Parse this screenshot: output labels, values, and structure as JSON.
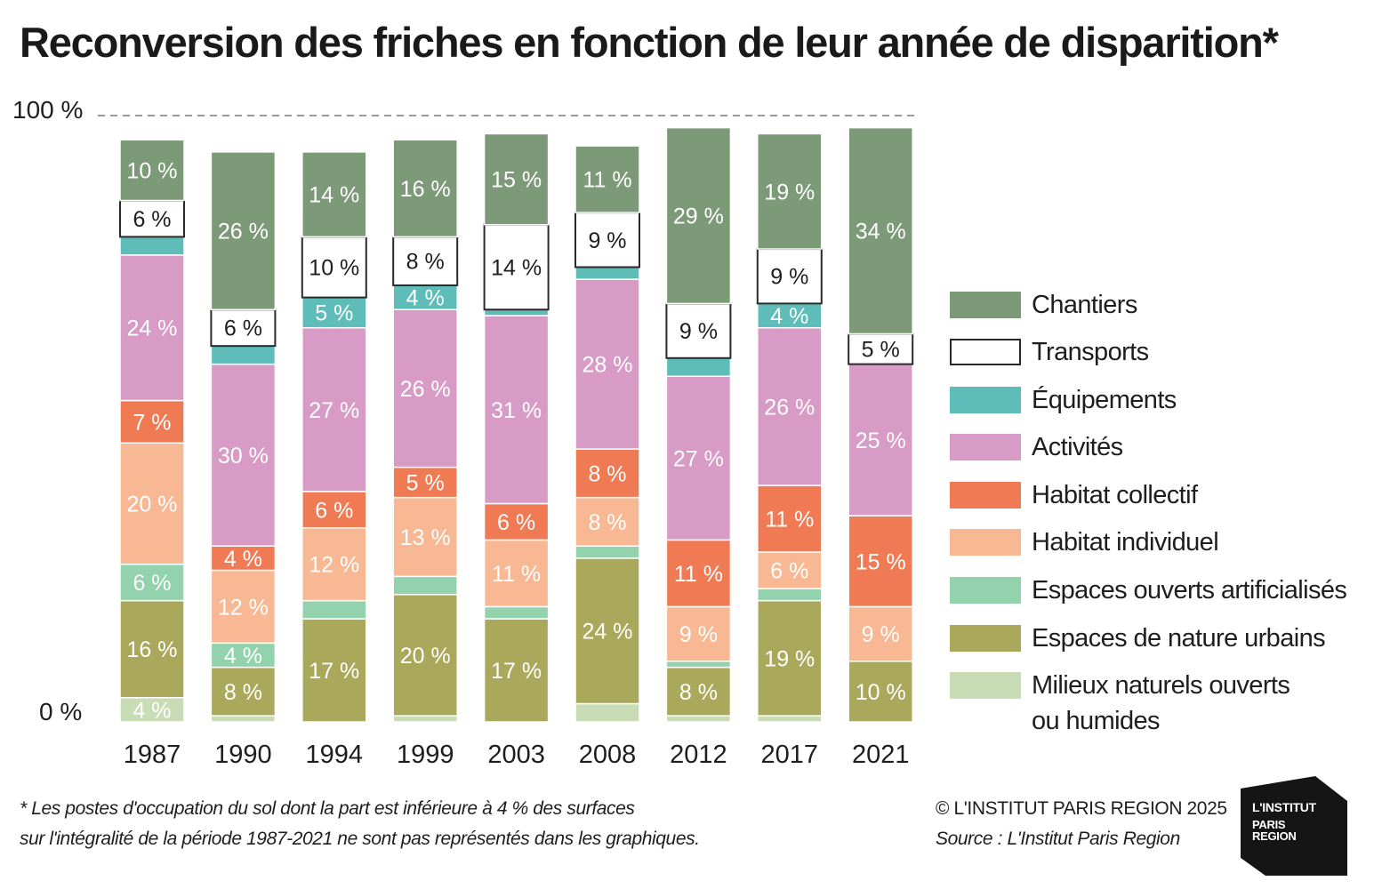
{
  "title": "Reconversion des friches en fonction de leur année de disparition*",
  "chart_data": {
    "type": "bar",
    "stacked": true,
    "categories": [
      "1987",
      "1990",
      "1994",
      "1999",
      "2003",
      "2008",
      "2012",
      "2017",
      "2021"
    ],
    "y_ticks": [
      "100 %",
      "0 %"
    ],
    "ylim": [
      0,
      100
    ],
    "series": [
      {
        "name": "Milieux naturels ouverts ou humides",
        "color": "#c8dcb5",
        "values": [
          4,
          1,
          0,
          1,
          0,
          3,
          1,
          1,
          0
        ],
        "labels": [
          "4 %",
          "",
          "",
          "",
          "",
          "",
          "",
          "",
          ""
        ]
      },
      {
        "name": "Espaces de nature urbains",
        "color": "#aaa85a",
        "values": [
          16,
          8,
          17,
          20,
          17,
          24,
          8,
          19,
          10
        ],
        "labels": [
          "16 %",
          "8 %",
          "17 %",
          "20 %",
          "17 %",
          "24 %",
          "8 %",
          "19 %",
          "10 %"
        ]
      },
      {
        "name": "Espaces ouverts artificialisés",
        "color": "#92d2ad",
        "values": [
          6,
          4,
          3,
          3,
          2,
          2,
          1,
          2,
          0
        ],
        "labels": [
          "6 %",
          "4 %",
          "",
          "",
          "",
          "",
          "",
          "",
          ""
        ]
      },
      {
        "name": "Habitat individuel",
        "color": "#f7b893",
        "values": [
          20,
          12,
          12,
          13,
          11,
          8,
          9,
          6,
          9
        ],
        "labels": [
          "20 %",
          "12 %",
          "12 %",
          "13 %",
          "11 %",
          "8 %",
          "9 %",
          "6 %",
          "9 %"
        ]
      },
      {
        "name": "Habitat collectif",
        "color": "#ef7a54",
        "values": [
          7,
          4,
          6,
          5,
          6,
          8,
          11,
          11,
          15
        ],
        "labels": [
          "7 %",
          "4 %",
          "6 %",
          "5 %",
          "6 %",
          "8 %",
          "11 %",
          "11 %",
          "15 %"
        ]
      },
      {
        "name": "Activités",
        "color": "#d79bc6",
        "values": [
          24,
          30,
          27,
          26,
          31,
          28,
          27,
          26,
          25
        ],
        "labels": [
          "24 %",
          "30 %",
          "27 %",
          "26 %",
          "31 %",
          "28 %",
          "27 %",
          "26 %",
          "25 %"
        ]
      },
      {
        "name": "Équipements",
        "color": "#5ebcb9",
        "values": [
          3,
          3,
          5,
          4,
          1,
          2,
          3,
          4,
          0
        ],
        "labels": [
          "",
          "",
          "5 %",
          "4 %",
          "",
          "",
          "",
          "4 %",
          ""
        ]
      },
      {
        "name": "Transports",
        "color": "#ffffff",
        "values": [
          6,
          6,
          10,
          8,
          14,
          9,
          9,
          9,
          5
        ],
        "labels": [
          "6 %",
          "6 %",
          "10 %",
          "8 %",
          "14 %",
          "9 %",
          "9 %",
          "9 %",
          "5 %"
        ]
      },
      {
        "name": "Chantiers",
        "color": "#7d9a78",
        "values": [
          10,
          26,
          14,
          16,
          15,
          11,
          29,
          19,
          34
        ],
        "labels": [
          "10 %",
          "26 %",
          "14 %",
          "16 %",
          "15 %",
          "11 %",
          "29 %",
          "19 %",
          "34 %"
        ]
      }
    ],
    "legend_position": "right",
    "grid": false
  },
  "legend": [
    {
      "label": "Chantiers",
      "color": "#7d9a78"
    },
    {
      "label": "Transports",
      "color": "#ffffff"
    },
    {
      "label": "Équipements",
      "color": "#5ebcb9"
    },
    {
      "label": "Activités",
      "color": "#d79bc6"
    },
    {
      "label": "Habitat collectif",
      "color": "#ef7a54"
    },
    {
      "label": "Habitat individuel",
      "color": "#f7b893"
    },
    {
      "label": "Espaces ouverts artificialisés",
      "color": "#92d2ad"
    },
    {
      "label": "Espaces de nature urbains",
      "color": "#aaa85a"
    },
    {
      "label": "Milieux naturels ouverts",
      "label2": "ou humides",
      "color": "#c8dcb5"
    }
  ],
  "footnote": {
    "line1": "* Les postes d'occupation du sol dont la part est inférieure à 4 % des surfaces",
    "line2": "sur l'intégralité de la période 1987-2021 ne sont pas représentés dans les graphiques."
  },
  "copyright": "© L'INSTITUT PARIS REGION 2025",
  "source": "Source : L'Institut Paris Region",
  "logo": {
    "line1": "L'INSTITUT",
    "line2": "PARIS",
    "line3": "REGION"
  }
}
